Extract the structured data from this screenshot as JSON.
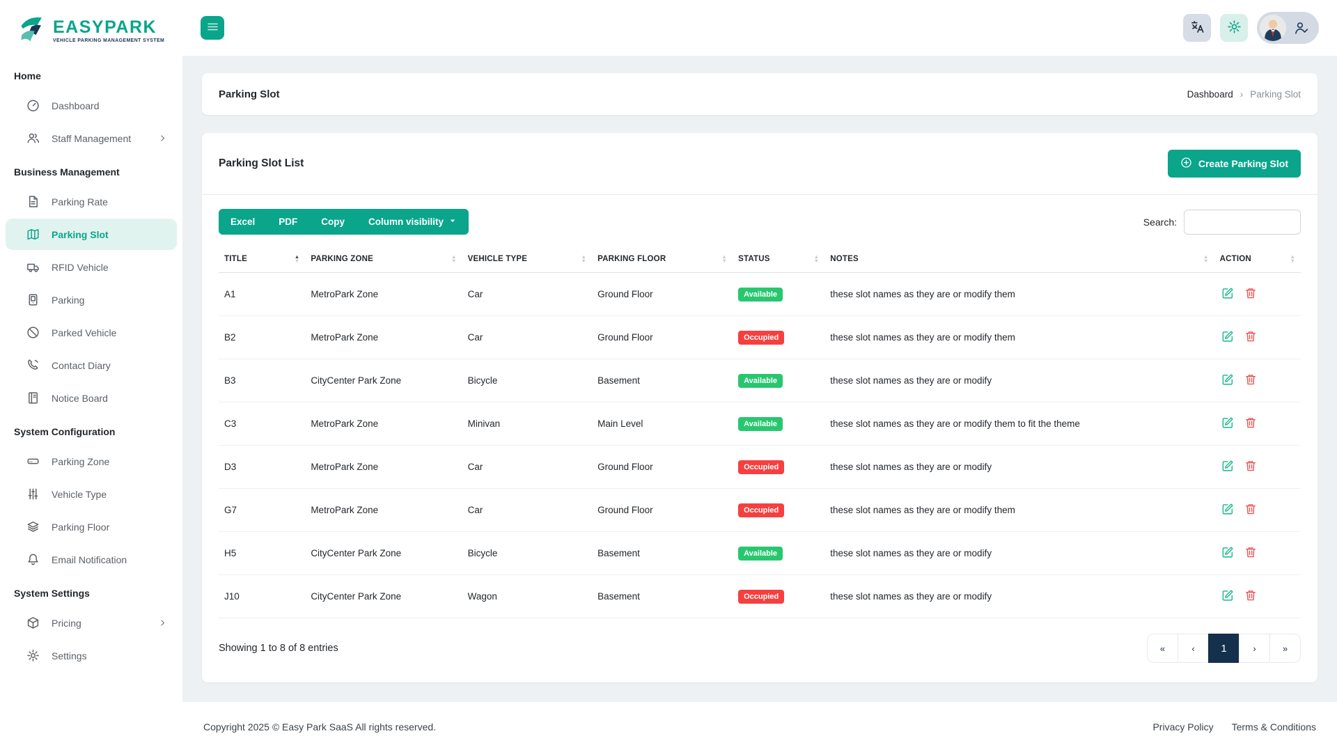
{
  "brand": {
    "name": "EASYPARK",
    "tagline": "VEHICLE PARKING MANAGEMENT SYSTEM"
  },
  "sidebar": {
    "sections": [
      {
        "heading": "Home",
        "items": [
          {
            "label": "Dashboard",
            "icon": "speedometer"
          },
          {
            "label": "Staff Management",
            "icon": "people",
            "submenu": true
          }
        ]
      },
      {
        "heading": "Business Management",
        "items": [
          {
            "label": "Parking Rate",
            "icon": "file-text"
          },
          {
            "label": "Parking Slot",
            "icon": "map",
            "active": true
          },
          {
            "label": "RFID Vehicle",
            "icon": "truck"
          },
          {
            "label": "Parking",
            "icon": "parking-meter"
          },
          {
            "label": "Parked Vehicle",
            "icon": "slash-circle"
          },
          {
            "label": "Contact Diary",
            "icon": "phone"
          },
          {
            "label": "Notice Board",
            "icon": "notice-board"
          }
        ]
      },
      {
        "heading": "System Configuration",
        "items": [
          {
            "label": "Parking Zone",
            "icon": "server"
          },
          {
            "label": "Vehicle Type",
            "icon": "sliders"
          },
          {
            "label": "Parking Floor",
            "icon": "layers"
          },
          {
            "label": "Email Notification",
            "icon": "bell"
          }
        ]
      },
      {
        "heading": "System Settings",
        "items": [
          {
            "label": "Pricing",
            "icon": "box",
            "submenu": true
          },
          {
            "label": "Settings",
            "icon": "gear"
          }
        ]
      }
    ]
  },
  "page": {
    "title": "Parking Slot",
    "breadcrumb": {
      "parent": "Dashboard",
      "separator": "›",
      "current": "Parking Slot"
    }
  },
  "list_card": {
    "title": "Parking Slot List",
    "create_button": "Create Parking Slot",
    "export_buttons": [
      "Excel",
      "PDF",
      "Copy"
    ],
    "column_visibility": "Column visibility",
    "search_label": "Search:",
    "search_value": ""
  },
  "table": {
    "columns": [
      "TITLE",
      "PARKING ZONE",
      "VEHICLE TYPE",
      "PARKING FLOOR",
      "STATUS",
      "NOTES",
      "ACTION"
    ],
    "sorted_column": "TITLE",
    "sort_direction": "asc",
    "rows": [
      {
        "title": "A1",
        "zone": "MetroPark Zone",
        "vehicle_type": "Car",
        "floor": "Ground Floor",
        "status": "Available",
        "notes": "these slot names as they are or modify them"
      },
      {
        "title": "B2",
        "zone": "MetroPark Zone",
        "vehicle_type": "Car",
        "floor": "Ground Floor",
        "status": "Occupied",
        "notes": "these slot names as they are or modify them"
      },
      {
        "title": "B3",
        "zone": "CityCenter Park Zone",
        "vehicle_type": "Bicycle",
        "floor": "Basement",
        "status": "Available",
        "notes": "these slot names as they are or modify"
      },
      {
        "title": "C3",
        "zone": "MetroPark Zone",
        "vehicle_type": "Minivan",
        "floor": "Main Level",
        "status": "Available",
        "notes": "these slot names as they are or modify them to fit the theme"
      },
      {
        "title": "D3",
        "zone": "MetroPark Zone",
        "vehicle_type": "Car",
        "floor": "Ground Floor",
        "status": "Occupied",
        "notes": "these slot names as they are or modify"
      },
      {
        "title": "G7",
        "zone": "MetroPark Zone",
        "vehicle_type": "Car",
        "floor": "Ground Floor",
        "status": "Occupied",
        "notes": "these slot names as they are or modify them"
      },
      {
        "title": "H5",
        "zone": "CityCenter Park Zone",
        "vehicle_type": "Bicycle",
        "floor": "Basement",
        "status": "Available",
        "notes": "these slot names as they are or modify"
      },
      {
        "title": "J10",
        "zone": "CityCenter Park Zone",
        "vehicle_type": "Wagon",
        "floor": "Basement",
        "status": "Occupied",
        "notes": "these slot names as they are or modify"
      }
    ]
  },
  "table_footer": {
    "summary": "Showing 1 to 8 of 8 entries",
    "pagination": {
      "first": "«",
      "prev": "‹",
      "pages": [
        "1"
      ],
      "active_page": "1",
      "next": "›",
      "last": "»"
    }
  },
  "footer": {
    "copyright": "Copyright 2025 © Easy Park SaaS All rights reserved.",
    "links": [
      "Privacy Policy",
      "Terms & Conditions"
    ]
  },
  "colors": {
    "primary_teal": "#0aa58b",
    "dark_navy": "#14304d",
    "available_green": "#28c76f",
    "occupied_red": "#f5403f",
    "edit_green": "#14b789",
    "delete_red": "#f05252",
    "active_item_bg": "#e1f3ef",
    "content_bg": "#edf1f4"
  }
}
